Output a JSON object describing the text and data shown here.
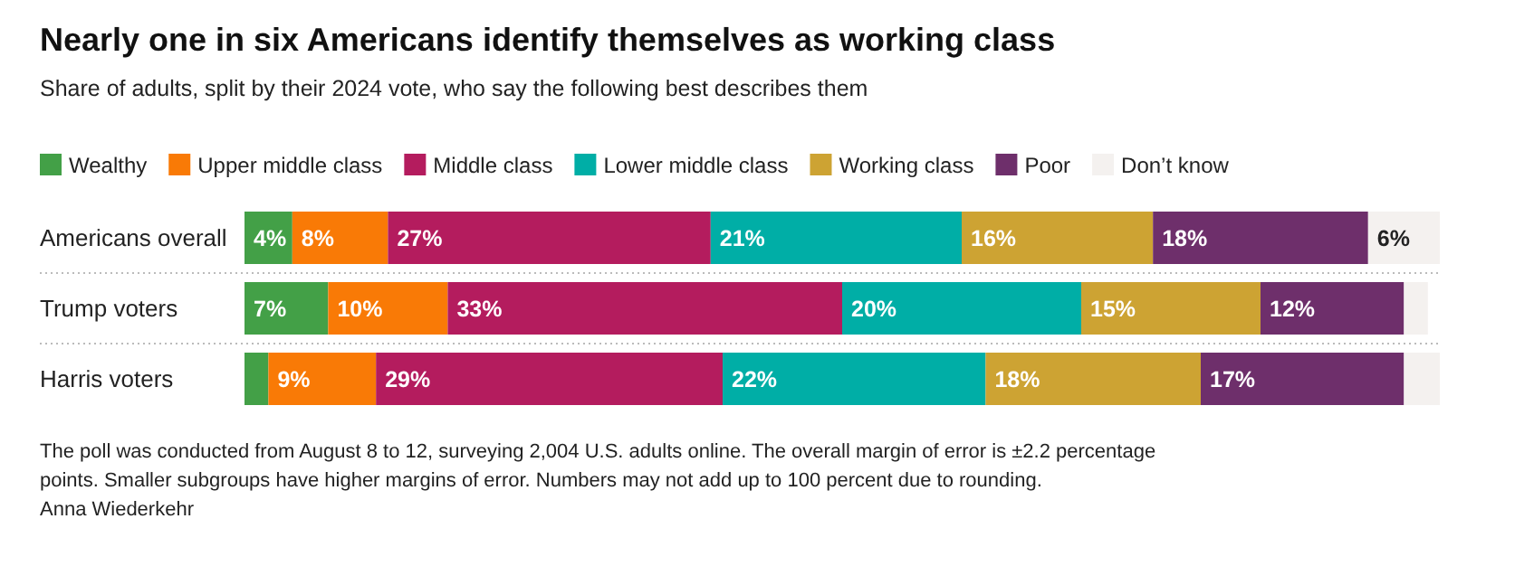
{
  "chart_data": {
    "type": "bar",
    "orientation": "horizontal",
    "stacked": true,
    "title": "Nearly one in six Americans identify themselves as working class",
    "subtitle": "Share of adults, split by their 2024 vote, who say the following best describes them",
    "categories": [
      "Americans overall",
      "Trump voters",
      "Harris voters"
    ],
    "legend": "top left",
    "series": [
      {
        "name": "Wealthy",
        "color": "#43a047",
        "values": [
          4,
          7,
          2
        ],
        "value_labels": [
          "4%",
          "7%",
          null
        ]
      },
      {
        "name": "Upper middle class",
        "color": "#f97a06",
        "values": [
          8,
          10,
          9
        ],
        "value_labels": [
          "8%",
          "10%",
          "9%"
        ]
      },
      {
        "name": "Middle class",
        "color": "#b41c5e",
        "values": [
          27,
          33,
          29
        ],
        "value_labels": [
          "27%",
          "33%",
          "29%"
        ]
      },
      {
        "name": "Lower middle class",
        "color": "#00aea6",
        "values": [
          21,
          20,
          22
        ],
        "value_labels": [
          "21%",
          "20%",
          "22%"
        ]
      },
      {
        "name": "Working class",
        "color": "#cda333",
        "values": [
          16,
          15,
          18
        ],
        "value_labels": [
          "16%",
          "15%",
          "18%"
        ]
      },
      {
        "name": "Poor",
        "color": "#6e2f6b",
        "values": [
          18,
          12,
          17
        ],
        "value_labels": [
          "18%",
          "12%",
          "17%"
        ]
      },
      {
        "name": "Don’t know",
        "color": "#f4f1ef",
        "values": [
          6,
          2,
          3
        ],
        "value_labels": [
          "6%",
          null,
          null
        ]
      }
    ],
    "annotations": [
      "The poll was conducted from August 8 to 12, surveying 2,004 U.S. adults online. The overall margin of error is ±2.2 percentage points. Smaller subgroups have higher margins of error. Numbers may not add up to 100 percent due to rounding.",
      "Anna Wiederkehr"
    ]
  }
}
